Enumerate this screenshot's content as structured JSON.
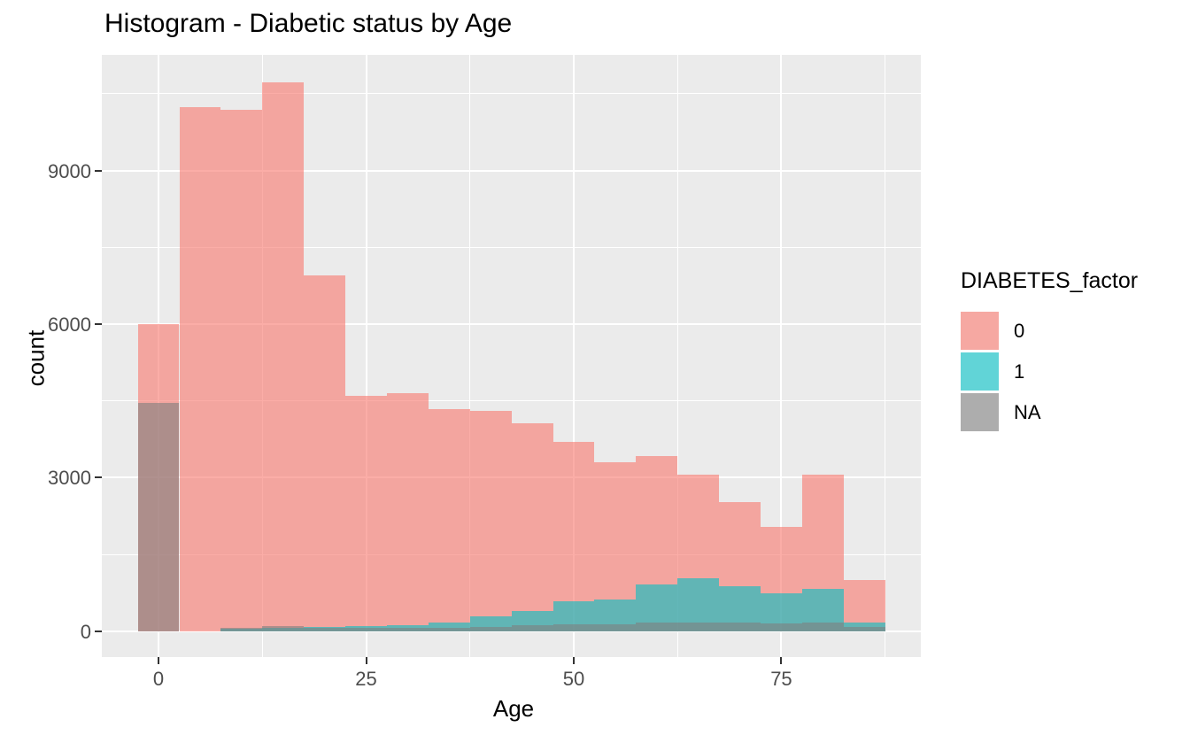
{
  "chart_data": {
    "type": "bar",
    "subtype": "overlaid-histogram",
    "title": "Histogram - Diabetic status by Age",
    "xlabel": "Age",
    "ylabel": "count",
    "legend_title": "DIABETES_factor",
    "legend_position": "right",
    "bin_width": 5,
    "bin_centers": [
      0,
      5,
      10,
      15,
      20,
      25,
      30,
      35,
      40,
      45,
      50,
      55,
      60,
      65,
      70,
      75,
      80,
      85
    ],
    "series": [
      {
        "name": "0",
        "color": "#F8766D",
        "values": [
          6000,
          10240,
          10180,
          10730,
          6950,
          4600,
          4650,
          4340,
          4300,
          4070,
          3700,
          3300,
          3420,
          3050,
          2520,
          2040,
          3050,
          990
        ]
      },
      {
        "name": "1",
        "color": "#00BFC4",
        "values": [
          0,
          0,
          40,
          60,
          80,
          95,
          120,
          165,
          290,
          390,
          580,
          620,
          920,
          1040,
          880,
          740,
          820,
          160
        ]
      },
      {
        "name": "NA",
        "color": "#7F7F7F",
        "values": [
          4460,
          0,
          60,
          100,
          60,
          60,
          60,
          70,
          90,
          110,
          130,
          130,
          170,
          170,
          170,
          150,
          160,
          80
        ]
      }
    ],
    "fill_alpha": 0.6,
    "x_ticks": [
      0,
      25,
      50,
      75
    ],
    "y_ticks": [
      0,
      3000,
      6000,
      9000
    ],
    "x_minor_ticks": [
      12.5,
      37.5,
      62.5,
      87.5
    ],
    "y_minor_ticks": [
      1500,
      4500,
      7500,
      10500
    ],
    "x_range": [
      -6.83,
      91.8
    ],
    "y_range": [
      -507,
      11261
    ],
    "grid": true,
    "panel_background": "#EBEBEB",
    "grid_color": "#FFFFFF",
    "tick_label_color": "#4D4D4D",
    "tick_mark_color": "#333333",
    "legend_key_background": "#F2F2F2"
  }
}
